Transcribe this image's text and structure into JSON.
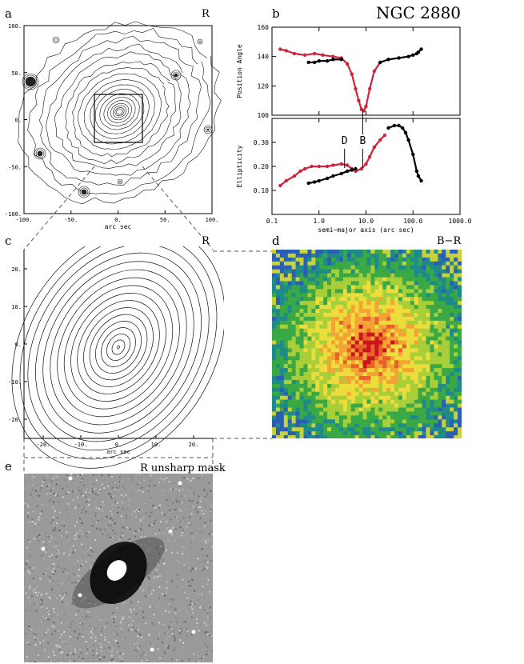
{
  "figure_title": "NGC 2880",
  "panels": {
    "a": {
      "letter": "a",
      "band": "R",
      "xlabel": "arc sec",
      "xticks": [
        "-100.",
        "-50.",
        "0.",
        "50.",
        "100."
      ],
      "yticks": [
        "100.",
        "50.",
        "0.",
        "-50.",
        "-100."
      ]
    },
    "b": {
      "letter": "b"
    },
    "c": {
      "letter": "c",
      "band": "R",
      "xlabel": "arc sec",
      "xticks": [
        "-20.",
        "-10.",
        "0.",
        "10.",
        "20."
      ],
      "yticks": [
        "20.",
        "10.",
        "0.",
        "-10.",
        "-20."
      ]
    },
    "d": {
      "letter": "d",
      "band": "B−R"
    },
    "e": {
      "letter": "e",
      "band": "R unsharp mask"
    }
  },
  "chart_data": [
    {
      "type": "scatter",
      "panel": "b-top",
      "ylabel": "Position Angle",
      "ylim": [
        100,
        160
      ],
      "yticks": [
        "160",
        "140",
        "120",
        "100"
      ],
      "xscale": "log",
      "xlim": [
        0.1,
        1000
      ],
      "series": [
        {
          "color": "#d0233c",
          "x": [
            0.15,
            0.2,
            0.3,
            0.5,
            0.8,
            1.2,
            2,
            3,
            4,
            5,
            6,
            7,
            8,
            9,
            10,
            12,
            15,
            20
          ],
          "y": [
            145,
            144,
            142,
            141,
            142,
            141,
            140,
            139,
            135,
            128,
            118,
            110,
            104,
            103,
            106,
            118,
            130,
            136
          ]
        },
        {
          "color": "#000000",
          "x": [
            0.6,
            0.8,
            1.0,
            1.5,
            2,
            3,
            20,
            30,
            50,
            80,
            100,
            120,
            130,
            150
          ],
          "y": [
            136,
            136,
            137,
            137,
            138,
            138,
            136,
            138,
            139,
            140,
            141,
            142,
            143,
            145
          ]
        }
      ],
      "annotations": []
    },
    {
      "type": "scatter",
      "panel": "b-bottom",
      "ylabel": "Ellipticity",
      "xlabel": "semi−major axis (arc sec)",
      "ylim": [
        0,
        0.4
      ],
      "yticks": [
        "0.30",
        "0.20",
        "0.10"
      ],
      "xscale": "log",
      "xlim": [
        0.1,
        1000
      ],
      "xticks": [
        "0.1",
        "1.0",
        "10.0",
        "100.0",
        "1000.0"
      ],
      "series": [
        {
          "color": "#d0233c",
          "x": [
            0.15,
            0.2,
            0.3,
            0.4,
            0.5,
            0.7,
            1,
            1.5,
            2,
            3,
            4,
            5,
            6,
            8,
            10,
            12,
            15,
            20,
            25
          ],
          "y": [
            0.12,
            0.14,
            0.16,
            0.18,
            0.19,
            0.2,
            0.2,
            0.2,
            0.205,
            0.21,
            0.205,
            0.19,
            0.18,
            0.19,
            0.21,
            0.24,
            0.28,
            0.31,
            0.33
          ]
        },
        {
          "color": "#000000",
          "x": [
            0.6,
            0.8,
            1,
            1.5,
            2,
            3,
            4,
            5,
            6,
            30,
            40,
            50,
            60,
            70,
            80,
            100,
            120,
            130,
            150
          ],
          "y": [
            0.13,
            0.135,
            0.14,
            0.15,
            0.16,
            0.17,
            0.18,
            0.185,
            0.19,
            0.36,
            0.37,
            0.37,
            0.36,
            0.34,
            0.31,
            0.25,
            0.18,
            0.16,
            0.14
          ]
        }
      ],
      "annotations": [
        {
          "text": "D",
          "x": 3.5
        },
        {
          "text": "B",
          "x": 8.5
        }
      ]
    }
  ]
}
